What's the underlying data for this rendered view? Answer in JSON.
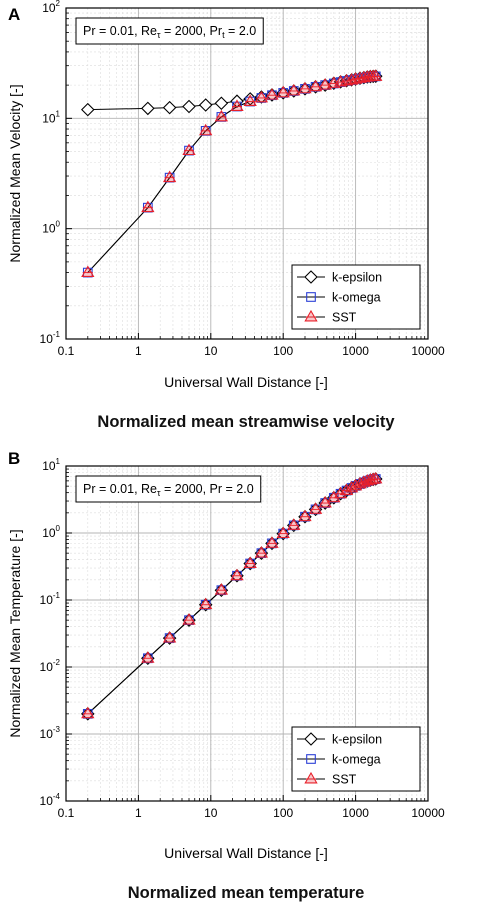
{
  "chart_data": [
    {
      "type": "scatter",
      "panel_label": "A",
      "caption": "Normalized mean streamwise velocity",
      "xlabel": "Universal Wall Distance [-]",
      "ylabel": "Normalized Mean Velocity [-]",
      "xscale": "log",
      "yscale": "log",
      "xlim": [
        0.1,
        10000
      ],
      "ylim": [
        0.1,
        100
      ],
      "x_ticks": [
        "0.1",
        "1",
        "10",
        "100",
        "1000",
        "10000"
      ],
      "y_ticks": [
        {
          "base": "10",
          "exp": "-1"
        },
        {
          "base": "10",
          "exp": "0"
        },
        {
          "base": "10",
          "exp": "1"
        },
        {
          "base": "10",
          "exp": "2"
        }
      ],
      "grid": true,
      "annotation": {
        "pre": "Pr = 0.01, Re",
        "sub": "τ",
        "mid": " = 2000, Pr",
        "sub2": "t",
        "post": " = 2.0"
      },
      "legend_position": "bottom-right",
      "series": [
        {
          "name": "k-epsilon",
          "marker": "diamond",
          "color": "#000000",
          "x": [
            0.2,
            1.35,
            2.7,
            5.0,
            8.5,
            14,
            23,
            35,
            50,
            70,
            100,
            140,
            200,
            280,
            380,
            500,
            620,
            750,
            880,
            1000,
            1150,
            1300,
            1450,
            1600,
            1750,
            1900
          ],
          "y": [
            12.0,
            12.3,
            12.5,
            12.8,
            13.2,
            13.7,
            14.3,
            15.0,
            15.6,
            16.3,
            17.0,
            17.7,
            18.5,
            19.3,
            20.0,
            20.8,
            21.4,
            21.9,
            22.3,
            22.7,
            23.1,
            23.4,
            23.7,
            23.9,
            24.0,
            24.1
          ]
        },
        {
          "name": "k-omega",
          "marker": "square",
          "color": "#2b3fd6",
          "x": [
            0.2,
            1.35,
            2.7,
            5.0,
            8.5,
            14,
            23,
            35,
            50,
            70,
            100,
            140,
            200,
            280,
            380,
            500,
            620,
            750,
            880,
            1000,
            1150,
            1300,
            1450,
            1600,
            1750,
            1900
          ],
          "y": [
            0.4,
            1.55,
            2.9,
            5.1,
            7.7,
            10.3,
            12.8,
            14.2,
            15.3,
            16.2,
            17.0,
            17.7,
            18.5,
            19.3,
            20.0,
            20.7,
            21.3,
            21.8,
            22.2,
            22.6,
            23.0,
            23.3,
            23.6,
            23.8,
            23.9,
            24.0
          ]
        },
        {
          "name": "SST",
          "marker": "triangle",
          "color": "#e8202a",
          "x": [
            0.2,
            1.35,
            2.7,
            5.0,
            8.5,
            14,
            23,
            35,
            50,
            70,
            100,
            140,
            200,
            280,
            380,
            500,
            620,
            750,
            880,
            1000,
            1150,
            1300,
            1450,
            1600,
            1750,
            1900
          ],
          "y": [
            0.4,
            1.55,
            2.9,
            5.1,
            7.7,
            10.3,
            12.8,
            14.2,
            15.3,
            16.2,
            17.0,
            17.7,
            18.5,
            19.3,
            20.0,
            20.7,
            21.3,
            21.8,
            22.2,
            22.6,
            23.0,
            23.3,
            23.6,
            23.8,
            23.9,
            24.0
          ]
        }
      ]
    },
    {
      "type": "scatter",
      "panel_label": "B",
      "caption": "Normalized mean temperature",
      "xlabel": "Universal Wall Distance [-]",
      "ylabel": "Normalized Mean Temperature [-]",
      "xscale": "log",
      "yscale": "log",
      "xlim": [
        0.1,
        10000
      ],
      "ylim": [
        0.0001,
        10
      ],
      "x_ticks": [
        "0.1",
        "1",
        "10",
        "100",
        "1000",
        "10000"
      ],
      "y_ticks": [
        {
          "base": "10",
          "exp": "-4"
        },
        {
          "base": "10",
          "exp": "-3"
        },
        {
          "base": "10",
          "exp": "-2"
        },
        {
          "base": "10",
          "exp": "-1"
        },
        {
          "base": "10",
          "exp": "0"
        },
        {
          "base": "10",
          "exp": "1"
        }
      ],
      "grid": true,
      "annotation": {
        "pre": "Pr = 0.01, Re",
        "sub": "τ",
        "mid": " = 2000, Pr",
        "sub2": "",
        "post": " = 2.0"
      },
      "legend_position": "bottom-right",
      "series": [
        {
          "name": "k-epsilon",
          "marker": "diamond",
          "color": "#000000",
          "x": [
            0.2,
            1.35,
            2.7,
            5.0,
            8.5,
            14,
            23,
            35,
            50,
            70,
            100,
            140,
            200,
            280,
            380,
            500,
            620,
            750,
            880,
            1000,
            1150,
            1300,
            1450,
            1600,
            1750,
            1900
          ],
          "y": [
            0.002,
            0.0135,
            0.027,
            0.05,
            0.085,
            0.14,
            0.23,
            0.35,
            0.5,
            0.7,
            0.98,
            1.3,
            1.75,
            2.25,
            2.8,
            3.35,
            3.85,
            4.3,
            4.7,
            5.05,
            5.4,
            5.7,
            5.95,
            6.15,
            6.3,
            6.4
          ]
        },
        {
          "name": "k-omega",
          "marker": "square",
          "color": "#2b3fd6",
          "x": [
            0.2,
            1.35,
            2.7,
            5.0,
            8.5,
            14,
            23,
            35,
            50,
            70,
            100,
            140,
            200,
            280,
            380,
            500,
            620,
            750,
            880,
            1000,
            1150,
            1300,
            1450,
            1600,
            1750,
            1900
          ],
          "y": [
            0.002,
            0.0135,
            0.027,
            0.05,
            0.085,
            0.14,
            0.23,
            0.35,
            0.5,
            0.7,
            0.98,
            1.3,
            1.75,
            2.25,
            2.8,
            3.35,
            3.85,
            4.3,
            4.7,
            5.05,
            5.4,
            5.7,
            5.95,
            6.15,
            6.3,
            6.4
          ]
        },
        {
          "name": "SST",
          "marker": "triangle",
          "color": "#e8202a",
          "x": [
            0.2,
            1.35,
            2.7,
            5.0,
            8.5,
            14,
            23,
            35,
            50,
            70,
            100,
            140,
            200,
            280,
            380,
            500,
            620,
            750,
            880,
            1000,
            1150,
            1300,
            1450,
            1600,
            1750,
            1900
          ],
          "y": [
            0.002,
            0.0135,
            0.027,
            0.05,
            0.085,
            0.14,
            0.23,
            0.35,
            0.5,
            0.7,
            0.98,
            1.3,
            1.75,
            2.25,
            2.8,
            3.35,
            3.85,
            4.3,
            4.7,
            5.05,
            5.4,
            5.7,
            5.95,
            6.15,
            6.3,
            6.4
          ]
        }
      ]
    }
  ]
}
